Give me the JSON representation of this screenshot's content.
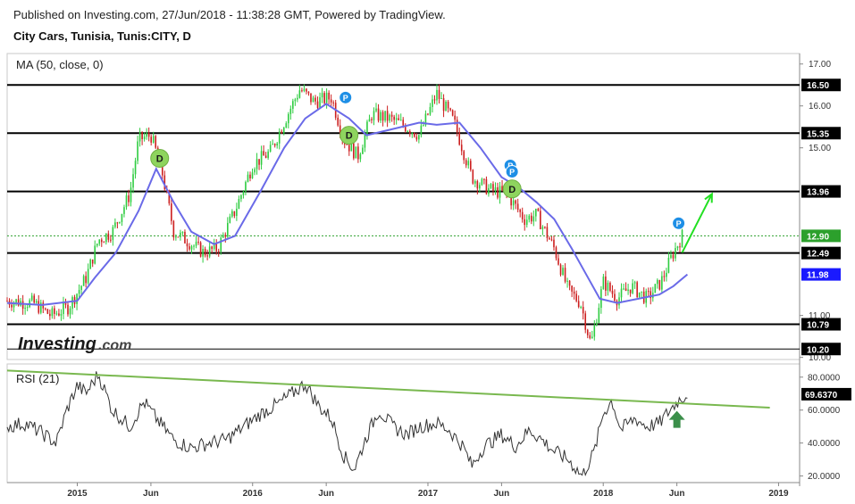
{
  "header": {
    "published": "Published on Investing.com, 27/Jun/2018 - 11:38:28 GMT, Powered by TradingView.",
    "symbol": "City Cars, Tunisia, Tunis:CITY, D"
  },
  "logo": {
    "main": "Investing",
    "suffix": ".com"
  },
  "chart_data": [
    {
      "type": "candlestick",
      "indicator_label": "MA (50, close, 0)",
      "ylim": [
        9.95,
        17.25
      ],
      "y_ticks": [
        "17.00",
        "16.00",
        "15.00",
        "11.00",
        "10.00"
      ],
      "x_ticks": [
        "2015",
        "Jun",
        "2016",
        "Jun",
        "2017",
        "Jun",
        "2018",
        "Jun",
        "2019"
      ],
      "x_tick_dates": [
        2015.0,
        2015.42,
        2016.0,
        2016.42,
        2017.0,
        2017.42,
        2018.0,
        2018.42,
        2019.0
      ],
      "xlim": [
        2014.6,
        2019.12
      ],
      "levels": [
        {
          "value": 16.5,
          "label": "16.50"
        },
        {
          "value": 15.35,
          "label": "15.35"
        },
        {
          "value": 13.96,
          "label": "13.96"
        },
        {
          "value": 12.49,
          "label": "12.49"
        },
        {
          "value": 10.79,
          "label": "10.79"
        },
        {
          "value": 10.2,
          "label": "10.20"
        }
      ],
      "last_price": {
        "value": 12.9,
        "label": "12.90",
        "color": "#2ca02c"
      },
      "ma_value": {
        "value": 11.98,
        "label": "11.98",
        "color": "#1a1aff"
      },
      "price_path": [
        [
          2014.6,
          11.35
        ],
        [
          2014.75,
          11.3
        ],
        [
          2014.85,
          11.0
        ],
        [
          2014.95,
          11.2
        ],
        [
          2015.05,
          11.9
        ],
        [
          2015.12,
          12.8
        ],
        [
          2015.2,
          13.0
        ],
        [
          2015.3,
          13.9
        ],
        [
          2015.35,
          15.2
        ],
        [
          2015.42,
          15.3
        ],
        [
          2015.48,
          14.5
        ],
        [
          2015.55,
          13.0
        ],
        [
          2015.62,
          12.8
        ],
        [
          2015.72,
          12.5
        ],
        [
          2015.8,
          12.6
        ],
        [
          2015.9,
          13.5
        ],
        [
          2016.0,
          14.6
        ],
        [
          2016.1,
          14.9
        ],
        [
          2016.2,
          15.8
        ],
        [
          2016.27,
          16.4
        ],
        [
          2016.35,
          16.1
        ],
        [
          2016.45,
          16.2
        ],
        [
          2016.52,
          15.2
        ],
        [
          2016.6,
          14.8
        ],
        [
          2016.68,
          15.8
        ],
        [
          2016.78,
          15.7
        ],
        [
          2016.88,
          15.5
        ],
        [
          2016.95,
          15.3
        ],
        [
          2017.05,
          16.3
        ],
        [
          2017.15,
          15.6
        ],
        [
          2017.25,
          14.3
        ],
        [
          2017.35,
          14.0
        ],
        [
          2017.45,
          13.9
        ],
        [
          2017.55,
          13.3
        ],
        [
          2017.62,
          13.4
        ],
        [
          2017.72,
          12.6
        ],
        [
          2017.8,
          11.6
        ],
        [
          2017.87,
          11.3
        ],
        [
          2017.93,
          10.3
        ],
        [
          2018.0,
          11.8
        ],
        [
          2018.08,
          11.4
        ],
        [
          2018.16,
          11.7
        ],
        [
          2018.25,
          11.4
        ],
        [
          2018.33,
          11.8
        ],
        [
          2018.4,
          12.5
        ],
        [
          2018.45,
          12.9
        ]
      ],
      "ma_path": [
        [
          2014.6,
          11.3
        ],
        [
          2014.8,
          11.25
        ],
        [
          2015.0,
          11.35
        ],
        [
          2015.1,
          11.9
        ],
        [
          2015.22,
          12.5
        ],
        [
          2015.35,
          13.5
        ],
        [
          2015.45,
          14.5
        ],
        [
          2015.55,
          13.7
        ],
        [
          2015.65,
          13.0
        ],
        [
          2015.78,
          12.7
        ],
        [
          2015.9,
          12.9
        ],
        [
          2016.05,
          14.0
        ],
        [
          2016.18,
          15.0
        ],
        [
          2016.3,
          15.7
        ],
        [
          2016.42,
          16.05
        ],
        [
          2016.55,
          15.7
        ],
        [
          2016.65,
          15.3
        ],
        [
          2016.8,
          15.45
        ],
        [
          2016.95,
          15.6
        ],
        [
          2017.05,
          15.55
        ],
        [
          2017.18,
          15.6
        ],
        [
          2017.3,
          15.0
        ],
        [
          2017.42,
          14.3
        ],
        [
          2017.52,
          14.05
        ],
        [
          2017.62,
          13.7
        ],
        [
          2017.72,
          13.3
        ],
        [
          2017.82,
          12.6
        ],
        [
          2017.9,
          12.0
        ],
        [
          2017.98,
          11.4
        ],
        [
          2018.08,
          11.3
        ],
        [
          2018.2,
          11.4
        ],
        [
          2018.32,
          11.5
        ],
        [
          2018.4,
          11.7
        ],
        [
          2018.48,
          11.98
        ]
      ],
      "forecast_arrow": [
        [
          2018.45,
          12.5
        ],
        [
          2018.62,
          13.9
        ]
      ],
      "markers": [
        {
          "x": 2015.47,
          "y": 14.75,
          "label": "D",
          "kind": "dividend"
        },
        {
          "x": 2016.55,
          "y": 15.3,
          "label": "D",
          "kind": "dividend"
        },
        {
          "x": 2017.48,
          "y": 14.02,
          "label": "D",
          "kind": "dividend"
        },
        {
          "x": 2016.53,
          "y": 16.2,
          "label": "P",
          "kind": "pattern"
        },
        {
          "x": 2017.47,
          "y": 14.58,
          "label": "P",
          "kind": "pattern"
        },
        {
          "x": 2017.48,
          "y": 14.43,
          "label": "P",
          "kind": "pattern"
        },
        {
          "x": 2018.43,
          "y": 13.2,
          "label": "P",
          "kind": "pattern"
        }
      ]
    },
    {
      "type": "line",
      "indicator_label": "RSI (21)",
      "ylim": [
        16,
        88
      ],
      "y_ticks": [
        "80.0000",
        "60.0000",
        "40.0000",
        "20.0000"
      ],
      "last_value": {
        "value": 69.637,
        "label": "69.6370"
      },
      "rsi_path": [
        [
          2014.6,
          50
        ],
        [
          2014.7,
          52
        ],
        [
          2014.8,
          46
        ],
        [
          2014.88,
          40
        ],
        [
          2014.94,
          60
        ],
        [
          2015.0,
          75
        ],
        [
          2015.05,
          70
        ],
        [
          2015.12,
          82
        ],
        [
          2015.2,
          60
        ],
        [
          2015.3,
          50
        ],
        [
          2015.38,
          65
        ],
        [
          2015.45,
          55
        ],
        [
          2015.55,
          42
        ],
        [
          2015.65,
          37
        ],
        [
          2015.75,
          40
        ],
        [
          2015.85,
          42
        ],
        [
          2015.95,
          50
        ],
        [
          2016.05,
          58
        ],
        [
          2016.15,
          64
        ],
        [
          2016.25,
          72
        ],
        [
          2016.3,
          76
        ],
        [
          2016.38,
          62
        ],
        [
          2016.45,
          55
        ],
        [
          2016.52,
          32
        ],
        [
          2016.58,
          24
        ],
        [
          2016.65,
          44
        ],
        [
          2016.72,
          60
        ],
        [
          2016.8,
          50
        ],
        [
          2016.88,
          45
        ],
        [
          2016.95,
          50
        ],
        [
          2017.05,
          52
        ],
        [
          2017.12,
          48
        ],
        [
          2017.2,
          38
        ],
        [
          2017.25,
          26
        ],
        [
          2017.32,
          38
        ],
        [
          2017.42,
          45
        ],
        [
          2017.5,
          38
        ],
        [
          2017.58,
          48
        ],
        [
          2017.65,
          42
        ],
        [
          2017.72,
          35
        ],
        [
          2017.8,
          30
        ],
        [
          2017.88,
          20
        ],
        [
          2017.95,
          35
        ],
        [
          2018.0,
          58
        ],
        [
          2018.05,
          66
        ],
        [
          2018.1,
          48
        ],
        [
          2018.18,
          55
        ],
        [
          2018.25,
          50
        ],
        [
          2018.32,
          52
        ],
        [
          2018.38,
          60
        ],
        [
          2018.43,
          66
        ],
        [
          2018.48,
          69.637
        ]
      ],
      "trendline": [
        [
          2014.6,
          84
        ],
        [
          2018.95,
          61.5
        ]
      ],
      "up_arrow": {
        "x": 2018.42,
        "y": 53
      }
    }
  ],
  "colors": {
    "candle_up": "#2ecc40",
    "candle_down": "#cc1f1f",
    "ma_line": "#6a6ae8",
    "level_line": "#000000",
    "trendline": "#79b84f",
    "forecast_arrow": "#22e022",
    "dividend_marker": "#8ed45e",
    "pattern_marker": "#1e8fe6",
    "up_arrow": "#3b8f4a"
  }
}
